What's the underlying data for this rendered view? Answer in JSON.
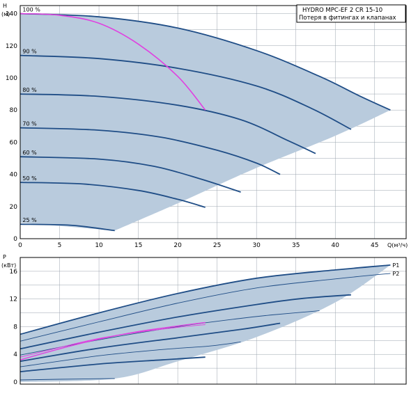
{
  "legend": {
    "model": "HYDRO MPC-EF 2 CR 15-10",
    "note": "Потеря в фитингах и клапанах"
  },
  "colors": {
    "envelope": "#b9cbdd",
    "curve": "#1f4d86",
    "highlight": "#e040e0",
    "grid": "#9aa3ad",
    "frame": "#000000"
  },
  "chart_data": [
    {
      "type": "line",
      "xlabel": "Q(м³/ч)",
      "ylabel_top": "H",
      "ylabel_unit": "(м)",
      "xlim": [
        0,
        49
      ],
      "ylim": [
        0,
        145
      ],
      "xticks": [
        0,
        5,
        10,
        15,
        20,
        25,
        30,
        35,
        40,
        45
      ],
      "yticks": [
        0,
        20,
        40,
        60,
        80,
        100,
        120,
        140
      ],
      "grid": true,
      "envelope": {
        "upper": [
          [
            0,
            140
          ],
          [
            10,
            138
          ],
          [
            20,
            131
          ],
          [
            30,
            117
          ],
          [
            38,
            101
          ],
          [
            43,
            89
          ],
          [
            47,
            80
          ]
        ],
        "lower": [
          [
            47,
            80
          ],
          [
            40,
            64
          ],
          [
            30,
            44
          ],
          [
            20,
            22
          ],
          [
            12,
            5
          ]
        ],
        "left": [
          [
            12,
            5
          ],
          [
            0,
            10
          ]
        ]
      },
      "series": [
        {
          "label": "100 %",
          "points": [
            [
              0,
              140
            ],
            [
              10,
              138
            ],
            [
              20,
              131
            ],
            [
              30,
              117
            ],
            [
              38,
              101
            ],
            [
              43,
              89
            ],
            [
              47,
              80
            ]
          ]
        },
        {
          "label": "90 %",
          "points": [
            [
              0,
              114
            ],
            [
              10,
              112
            ],
            [
              20,
              106
            ],
            [
              30,
              95
            ],
            [
              37,
              81
            ],
            [
              42,
              68
            ]
          ]
        },
        {
          "label": "80 %",
          "points": [
            [
              0,
              90
            ],
            [
              10,
              88.5
            ],
            [
              20,
              83
            ],
            [
              28,
              74
            ],
            [
              34,
              61
            ],
            [
              37.5,
              53
            ]
          ]
        },
        {
          "label": "70 %",
          "points": [
            [
              0,
              69
            ],
            [
              10,
              67.5
            ],
            [
              18,
              63
            ],
            [
              25,
              55
            ],
            [
              30,
              47
            ],
            [
              33,
              40
            ]
          ]
        },
        {
          "label": "60 %",
          "points": [
            [
              0,
              51
            ],
            [
              10,
              49.5
            ],
            [
              17,
              45
            ],
            [
              23,
              37
            ],
            [
              28,
              29
            ]
          ]
        },
        {
          "label": "50 %",
          "points": [
            [
              0,
              35
            ],
            [
              8,
              34
            ],
            [
              15,
              30
            ],
            [
              20,
              24.5
            ],
            [
              23.5,
              19.5
            ]
          ]
        },
        {
          "label": "25 %",
          "points": [
            [
              0,
              9
            ],
            [
              6,
              8.5
            ],
            [
              9,
              7
            ],
            [
              12,
              5
            ]
          ]
        }
      ],
      "highlight": [
        [
          0,
          140
        ],
        [
          5,
          139
        ],
        [
          10,
          134
        ],
        [
          15,
          121
        ],
        [
          20,
          101
        ],
        [
          23.5,
          80
        ]
      ]
    },
    {
      "type": "line",
      "ylabel_top": "P",
      "ylabel_unit": "(кВт)",
      "xlim": [
        0,
        49
      ],
      "ylim": [
        0,
        18
      ],
      "yticks": [
        0,
        4,
        8,
        12,
        16
      ],
      "grid": true,
      "envelope": {
        "upper": [
          [
            0,
            6.9
          ],
          [
            10,
            10
          ],
          [
            20,
            12.8
          ],
          [
            30,
            15
          ],
          [
            40,
            16.2
          ],
          [
            47,
            16.9
          ]
        ],
        "lower": [
          [
            47,
            16.9
          ],
          [
            40,
            11.5
          ],
          [
            30,
            6.5
          ],
          [
            20,
            3
          ],
          [
            12,
            0.5
          ],
          [
            0,
            0
          ]
        ]
      },
      "series": [
        {
          "label": "P1",
          "points": [
            [
              0,
              6.9
            ],
            [
              10,
              10
            ],
            [
              20,
              12.8
            ],
            [
              30,
              15
            ],
            [
              40,
              16.2
            ],
            [
              47,
              16.9
            ]
          ]
        },
        {
          "label": "P2",
          "points": [
            [
              0,
              5.9
            ],
            [
              10,
              8.7
            ],
            [
              20,
              11.4
            ],
            [
              30,
              13.6
            ],
            [
              40,
              14.9
            ],
            [
              47,
              15.7
            ]
          ]
        },
        {
          "label": "",
          "points": [
            [
              0,
              4.8
            ],
            [
              10,
              7.2
            ],
            [
              20,
              9.4
            ],
            [
              30,
              11.2
            ],
            [
              36,
              12.1
            ],
            [
              42,
              12.6
            ]
          ]
        },
        {
          "label": "",
          "points": [
            [
              0,
              3.9
            ],
            [
              10,
              6.1
            ],
            [
              20,
              8
            ],
            [
              28,
              9.2
            ],
            [
              32,
              9.7
            ],
            [
              38,
              10.3
            ]
          ]
        },
        {
          "label": "",
          "points": [
            [
              0,
              3
            ],
            [
              10,
              4.9
            ],
            [
              20,
              6.4
            ],
            [
              28,
              7.6
            ],
            [
              33,
              8.5
            ]
          ]
        },
        {
          "label": "",
          "points": [
            [
              0,
              2.2
            ],
            [
              10,
              3.8
            ],
            [
              18,
              4.7
            ],
            [
              24,
              5.2
            ],
            [
              28,
              5.8
            ]
          ]
        },
        {
          "label": "",
          "points": [
            [
              0,
              1.5
            ],
            [
              10,
              2.6
            ],
            [
              18,
              3.2
            ],
            [
              23.5,
              3.6
            ]
          ]
        },
        {
          "label": "",
          "points": [
            [
              0,
              0.3
            ],
            [
              5,
              0.4
            ],
            [
              12,
              0.5
            ]
          ]
        }
      ],
      "highlight": [
        [
          0,
          3.2
        ],
        [
          5,
          4.8
        ],
        [
          10,
          6.2
        ],
        [
          15,
          7.3
        ],
        [
          20,
          8.1
        ],
        [
          23.5,
          8.6
        ]
      ],
      "highlight2": [
        [
          0,
          3.6
        ],
        [
          5,
          5
        ],
        [
          10,
          6.3
        ],
        [
          15,
          7.2
        ],
        [
          20,
          7.9
        ],
        [
          23.5,
          8.3
        ]
      ]
    }
  ]
}
